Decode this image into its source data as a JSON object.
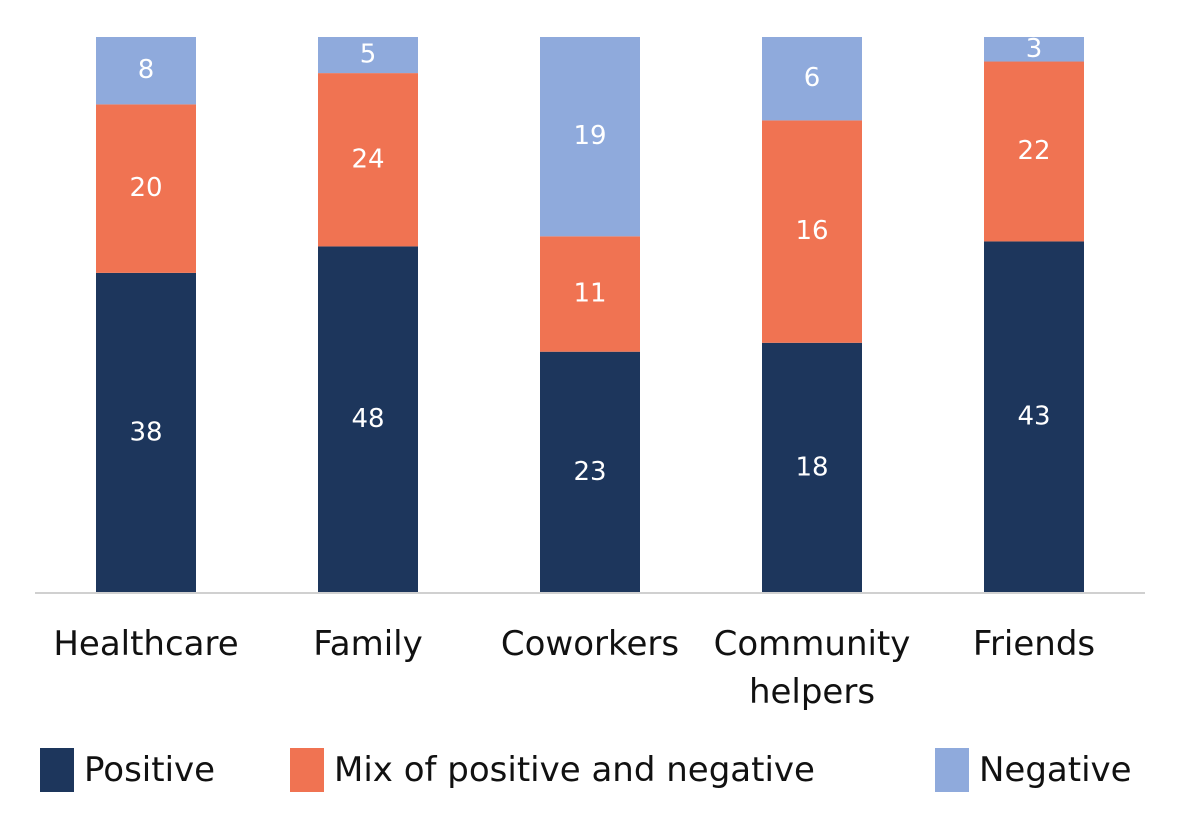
{
  "chart_data": {
    "type": "bar",
    "stacked": "percent",
    "ylim": [
      0,
      100
    ],
    "categories": [
      "Healthcare",
      "Family",
      "Coworkers",
      "Community helpers",
      "Friends"
    ],
    "series": [
      {
        "name": "Positive",
        "color": "#1d365c",
        "values": [
          38,
          48,
          23,
          18,
          43
        ]
      },
      {
        "name": "Mix of positive and negative",
        "color": "#f07352",
        "values": [
          20,
          24,
          11,
          16,
          22
        ]
      },
      {
        "name": "Negative",
        "color": "#8faadc",
        "values": [
          8,
          5,
          19,
          6,
          3
        ]
      }
    ]
  }
}
